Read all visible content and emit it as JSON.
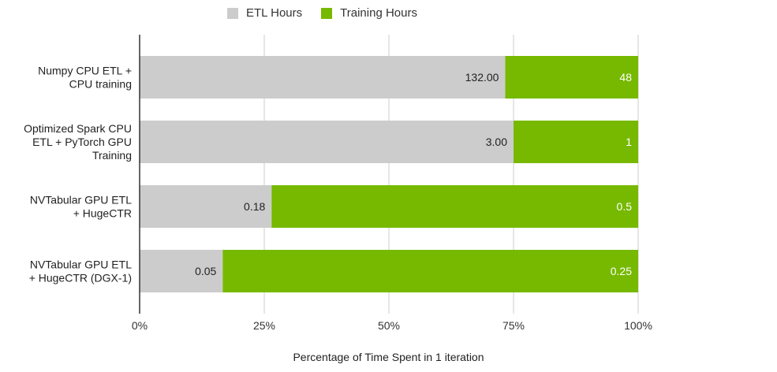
{
  "chart_data": {
    "type": "bar",
    "stacked": "percent",
    "orientation": "horizontal",
    "categories": [
      [
        "Numpy CPU ETL +",
        "CPU training"
      ],
      [
        "Optimized Spark CPU",
        "ETL + PyTorch GPU",
        "Training"
      ],
      [
        "NVTabular GPU ETL",
        "+ HugeCTR"
      ],
      [
        "NVTabular GPU ETL",
        "+ HugeCTR (DGX-1)"
      ]
    ],
    "series": [
      {
        "name": "ETL Hours",
        "color": "#cccccc",
        "values": [
          132,
          3,
          0.18,
          0.05
        ],
        "labels": [
          "132.00",
          "3.00",
          "0.18",
          "0.05"
        ],
        "label_color": "#222222"
      },
      {
        "name": "Training Hours",
        "color": "#76b900",
        "values": [
          48,
          1,
          0.5,
          0.25
        ],
        "labels": [
          "48",
          "1",
          "0.5",
          "0.25"
        ],
        "label_color": "#ffffff"
      }
    ],
    "xticks": [
      "0%",
      "25%",
      "50%",
      "75%",
      "100%"
    ],
    "xlabel": "Percentage of Time Spent in 1 iteration",
    "ylabel": "",
    "xlim": [
      0,
      100
    ],
    "grid": true,
    "legend": "top-center"
  }
}
